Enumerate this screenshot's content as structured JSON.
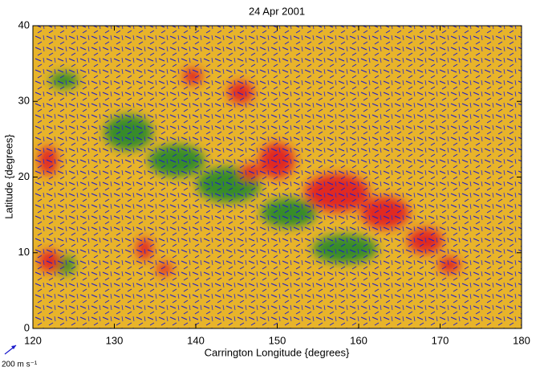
{
  "chart_data": {
    "type": "vector-field",
    "title": "24 Apr   2001",
    "xlabel": "Carrington Longitude {degrees}",
    "ylabel": "Latitude {degrees}",
    "xlim": [
      120,
      180
    ],
    "ylim": [
      0,
      40
    ],
    "xticks": [
      120,
      130,
      140,
      150,
      160,
      170,
      180
    ],
    "yticks": [
      0,
      10,
      20,
      30,
      40
    ],
    "scale_label": "200 m s⁻¹"
  }
}
